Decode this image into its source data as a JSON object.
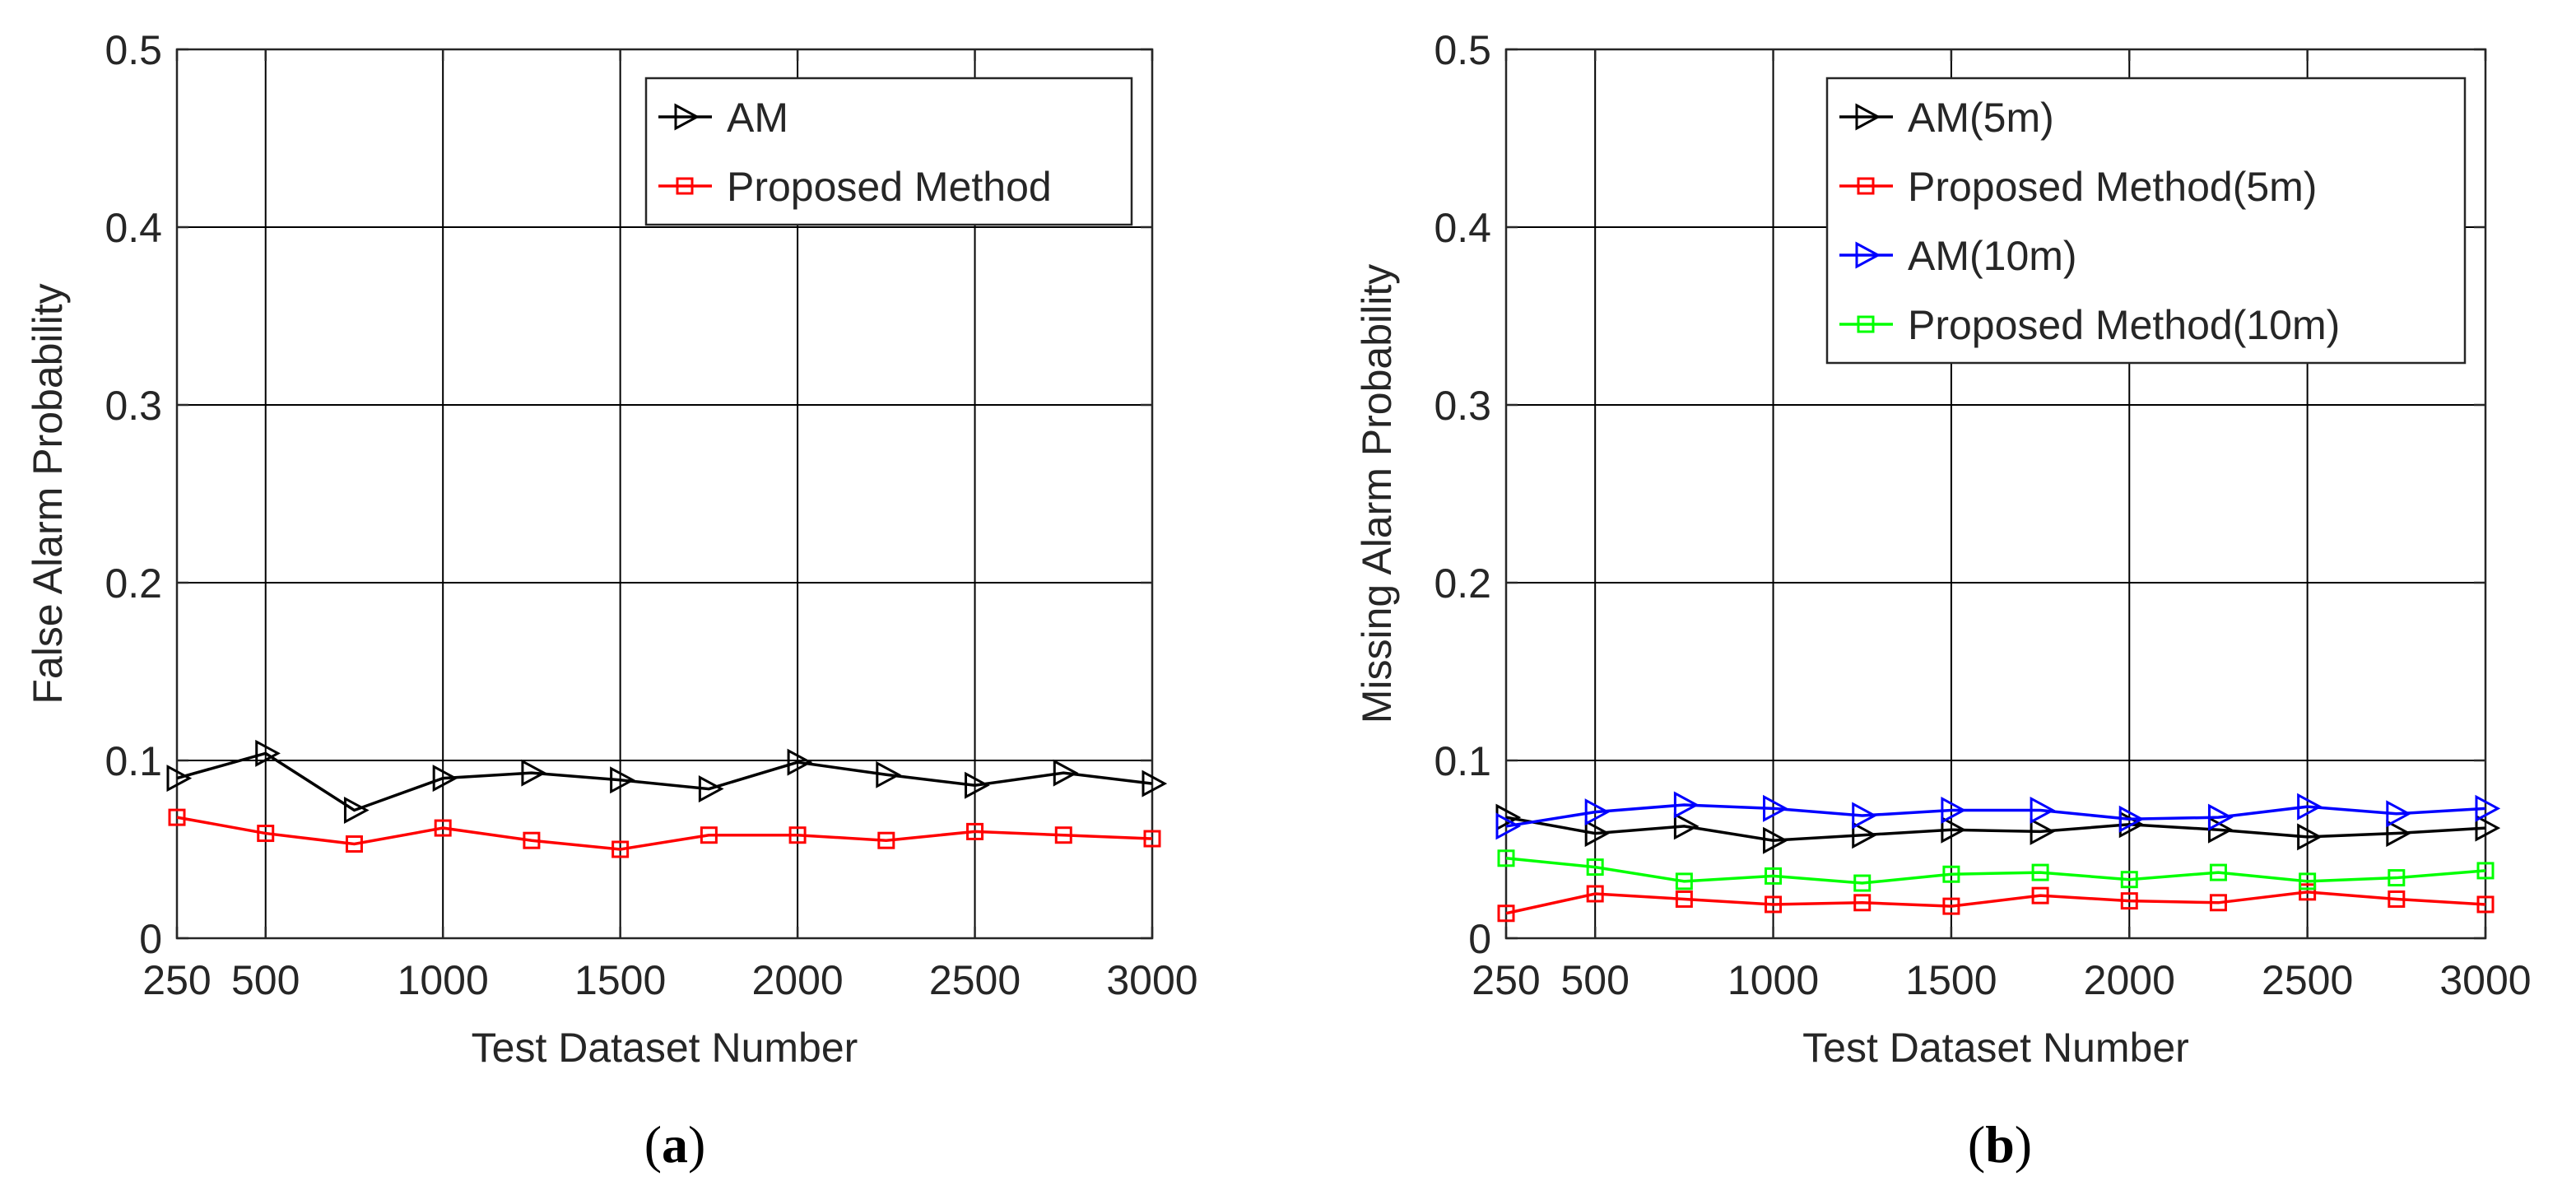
{
  "chart_data": [
    {
      "type": "line",
      "caption_open": "(",
      "caption_letter": "a",
      "caption_close": ")",
      "title": "",
      "xlabel": "Test Dataset Number",
      "ylabel": "False Alarm Probability",
      "xlim": [
        250,
        3000
      ],
      "ylim": [
        0,
        0.5
      ],
      "xticks": [
        250,
        500,
        1000,
        1500,
        2000,
        2500,
        3000
      ],
      "yticks": [
        0,
        0.1,
        0.2,
        0.3,
        0.4,
        0.5
      ],
      "ytick_labels": [
        "0",
        "0.1",
        "0.2",
        "0.3",
        "0.4",
        "0.5"
      ],
      "grid": true,
      "legend_position": "top-right",
      "x": [
        250,
        500,
        750,
        1000,
        1250,
        1500,
        1750,
        2000,
        2250,
        2500,
        2750,
        3000
      ],
      "series": [
        {
          "name": "AM",
          "color": "#000000",
          "marker": "triangle-right",
          "values": [
            0.09,
            0.104,
            0.072,
            0.09,
            0.093,
            0.089,
            0.084,
            0.099,
            0.092,
            0.086,
            0.093,
            0.087
          ]
        },
        {
          "name": "Proposed Method",
          "color": "#ff0000",
          "marker": "square",
          "values": [
            0.068,
            0.059,
            0.053,
            0.062,
            0.055,
            0.05,
            0.058,
            0.058,
            0.055,
            0.06,
            0.058,
            0.056
          ]
        }
      ]
    },
    {
      "type": "line",
      "caption_open": "(",
      "caption_letter": "b",
      "caption_close": ")",
      "title": "",
      "xlabel": "Test Dataset Number",
      "ylabel": "Missing Alarm Probability",
      "xlim": [
        250,
        3000
      ],
      "ylim": [
        0,
        0.5
      ],
      "xticks": [
        250,
        500,
        1000,
        1500,
        2000,
        2500,
        3000
      ],
      "yticks": [
        0,
        0.1,
        0.2,
        0.3,
        0.4,
        0.5
      ],
      "ytick_labels": [
        "0",
        "0.1",
        "0.2",
        "0.3",
        "0.4",
        "0.5"
      ],
      "grid": true,
      "legend_position": "top-right",
      "x": [
        250,
        500,
        750,
        1000,
        1250,
        1500,
        1750,
        2000,
        2250,
        2500,
        2750,
        3000
      ],
      "series": [
        {
          "name": "AM(5m)",
          "color": "#000000",
          "marker": "triangle-right",
          "values": [
            0.068,
            0.059,
            0.063,
            0.055,
            0.058,
            0.061,
            0.06,
            0.064,
            0.061,
            0.057,
            0.059,
            0.062
          ]
        },
        {
          "name": "Proposed Method(5m)",
          "color": "#ff0000",
          "marker": "square",
          "values": [
            0.014,
            0.025,
            0.022,
            0.019,
            0.02,
            0.018,
            0.024,
            0.021,
            0.02,
            0.026,
            0.022,
            0.019
          ]
        },
        {
          "name": "AM(10m)",
          "color": "#0000ff",
          "marker": "triangle-right",
          "values": [
            0.063,
            0.071,
            0.075,
            0.073,
            0.069,
            0.072,
            0.072,
            0.067,
            0.068,
            0.074,
            0.07,
            0.073
          ]
        },
        {
          "name": "Proposed Method(10m)",
          "color": "#00ff00",
          "marker": "square",
          "values": [
            0.045,
            0.04,
            0.032,
            0.035,
            0.031,
            0.036,
            0.037,
            0.033,
            0.037,
            0.032,
            0.034,
            0.038
          ]
        }
      ]
    }
  ]
}
